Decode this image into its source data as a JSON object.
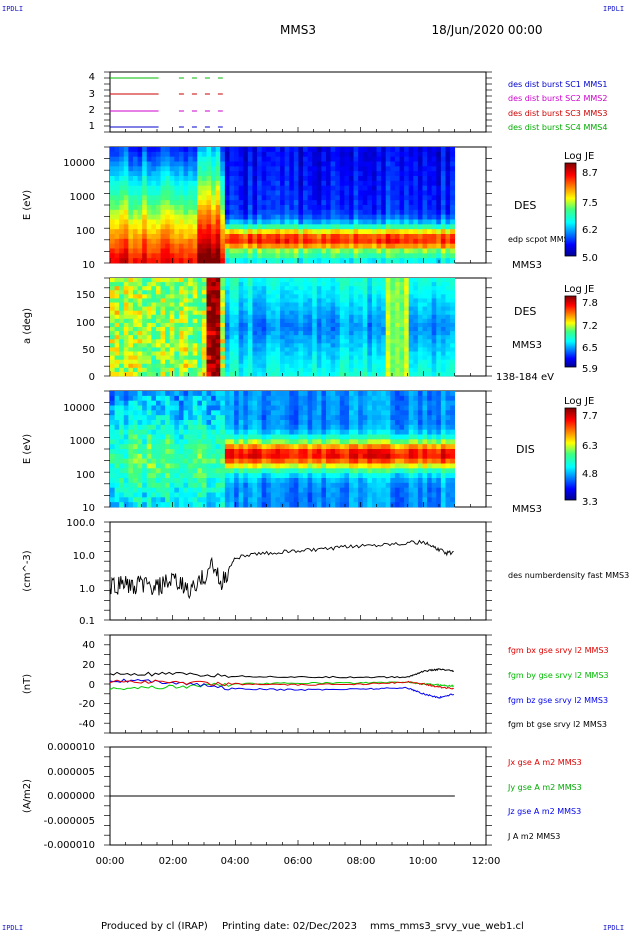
{
  "header": {
    "corner_label": "IPDLI",
    "mission": "MMS3",
    "datetime": "18/Jun/2020 00:00"
  },
  "footer": {
    "produced_by": "Produced by cl (IRAP)",
    "printing_date": "Printing date: 02/Dec/2023",
    "file": "mms_mms3_srvy_vue_web1.cl"
  },
  "colors": {
    "mms1": "#0000cc",
    "mms2": "#cc00cc",
    "mms3": "#cc0000",
    "mms4": "#00bb00",
    "bx": "#dd0000",
    "by": "#00cc00",
    "bz": "#0000ee",
    "bt": "#000000"
  },
  "chart_data": [
    {
      "type": "line",
      "panel": "availability",
      "yticks": [
        "1",
        "2",
        "3",
        "4"
      ],
      "series": [
        {
          "name": "des dist burst SC1 MMS1",
          "level": 1,
          "solid": [
            0,
            1.55
          ],
          "dashed": [
            2.2,
            3.6
          ]
        },
        {
          "name": "des dist burst SC2 MMS2",
          "level": 2,
          "solid": [
            0,
            1.55
          ],
          "dashed": [
            2.2,
            3.6
          ]
        },
        {
          "name": "des dist burst SC3 MMS3",
          "level": 3,
          "solid": [
            0,
            1.55
          ],
          "dashed": [
            2.2,
            3.6
          ]
        },
        {
          "name": "des dist burst SC4 MMS4",
          "level": 4,
          "solid": [
            0,
            1.55
          ],
          "dashed": [
            2.2,
            3.6
          ]
        }
      ]
    },
    {
      "type": "heatmap",
      "panel": "des_energy",
      "ylabel": "E (eV)",
      "yticks": [
        "10",
        "100",
        "1000",
        "10000"
      ],
      "label": "DES",
      "sublabel": "MMS3",
      "overlay": "edp scpot MMS3",
      "colorbar": {
        "title": "Log JE",
        "ticks": [
          "8.7",
          "7.5",
          "6.2",
          "5.0"
        ]
      }
    },
    {
      "type": "heatmap",
      "panel": "des_pitch",
      "ylabel": "a (deg)",
      "yticks": [
        "0",
        "50",
        "100",
        "150"
      ],
      "label": "DES",
      "sublabel": "MMS3",
      "energy_range": "138-184 eV",
      "colorbar": {
        "title": "Log JE",
        "ticks": [
          "7.8",
          "7.2",
          "6.5",
          "5.9"
        ]
      }
    },
    {
      "type": "heatmap",
      "panel": "dis_energy",
      "ylabel": "E (eV)",
      "yticks": [
        "10",
        "100",
        "1000",
        "10000"
      ],
      "label": "DIS",
      "sublabel": "MMS3",
      "colorbar": {
        "title": "Log JE",
        "ticks": [
          "7.7",
          "6.3",
          "4.8",
          "3.3"
        ]
      }
    },
    {
      "type": "line",
      "panel": "density",
      "ylabel": "(cm^-3)",
      "yticks": [
        "0.1",
        "1.0",
        "10.0",
        "100.0"
      ],
      "ylim": [
        0.1,
        100
      ],
      "scale": "log",
      "series": [
        {
          "name": "des numberdensity fast MMS3",
          "x": [
            0,
            0.25,
            0.5,
            0.75,
            1.0,
            1.25,
            1.5,
            1.75,
            2.0,
            2.25,
            2.5,
            2.75,
            3.0,
            3.25,
            3.5,
            3.75,
            4.0,
            4.5,
            5.0,
            5.5,
            6.0,
            6.5,
            7.0,
            7.5,
            8.0,
            8.5,
            9.0,
            9.5,
            10.0,
            10.25,
            10.5,
            10.75,
            11.0
          ],
          "y": [
            1.0,
            1.2,
            1.5,
            0.8,
            1.4,
            1.0,
            0.9,
            1.3,
            1.5,
            1.2,
            0.8,
            1.0,
            2.0,
            5.0,
            1.2,
            2.5,
            8.0,
            10.0,
            11.0,
            12.0,
            13.0,
            14.0,
            15.0,
            17.0,
            19.0,
            20.0,
            22.0,
            23.0,
            24.0,
            18.0,
            14.0,
            11.0,
            12.0
          ]
        }
      ]
    },
    {
      "type": "line",
      "panel": "bfield",
      "ylabel": "(nT)",
      "yticks": [
        "-40",
        "-20",
        "0",
        "20",
        "40"
      ],
      "ylim": [
        -50,
        50
      ],
      "series": [
        {
          "name": "fgm bx gse srvy l2 MMS3",
          "x": [
            0,
            2,
            4,
            6,
            8,
            9.5,
            10,
            10.5,
            11
          ],
          "y": [
            3,
            2,
            0,
            -1,
            0,
            2,
            0,
            -3,
            -5
          ]
        },
        {
          "name": "fgm by gse srvy l2 MMS3",
          "x": [
            0,
            2,
            4,
            6,
            8,
            9.5,
            10,
            10.5,
            11
          ],
          "y": [
            -4,
            -3,
            0,
            1,
            1,
            2,
            0,
            -1,
            -2
          ]
        },
        {
          "name": "fgm bz gse srvy l2 MMS3",
          "x": [
            0,
            2,
            4,
            6,
            8,
            9.5,
            10,
            10.5,
            11
          ],
          "y": [
            4,
            2,
            -5,
            -6,
            -5,
            -4,
            -10,
            -14,
            -10
          ]
        },
        {
          "name": "fgm bt gse srvy l2 MMS3",
          "x": [
            0,
            2,
            4,
            6,
            8,
            9.5,
            10,
            10.5,
            11
          ],
          "y": [
            10,
            10,
            8,
            7,
            7,
            7,
            13,
            15,
            13
          ]
        }
      ]
    },
    {
      "type": "line",
      "panel": "current",
      "ylabel": "(A/m2)",
      "yticks": [
        "-0.000010",
        "-0.000005",
        "0.000000",
        "0.000005",
        "0.000010"
      ],
      "ylim": [
        -1e-05,
        1e-05
      ],
      "series": [
        {
          "name": "Jx gse A m2 MMS3",
          "x": [
            0,
            11
          ],
          "y": [
            0,
            0
          ]
        },
        {
          "name": "Jy gse A m2 MMS3",
          "x": [
            0,
            11
          ],
          "y": [
            0,
            0
          ]
        },
        {
          "name": "Jz gse A m2 MMS3",
          "x": [
            0,
            11
          ],
          "y": [
            0,
            0
          ]
        },
        {
          "name": "J A m2 MMS3",
          "x": [
            0,
            11
          ],
          "y": [
            0,
            0
          ]
        }
      ],
      "xticks": [
        "00:00",
        "02:00",
        "04:00",
        "06:00",
        "08:00",
        "10:00",
        "12:00"
      ],
      "xlim": [
        0,
        12
      ]
    }
  ]
}
